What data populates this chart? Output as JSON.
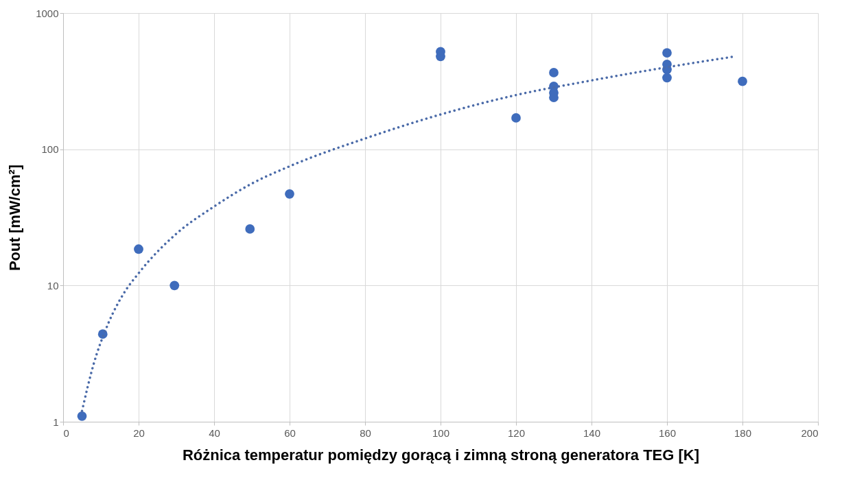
{
  "chart_data": {
    "type": "scatter",
    "xlabel": "Różnica temperatur pomiędzy gorącą i zimną stroną generatora TEG [K]",
    "ylabel": "Pout [mW/cm²]",
    "xlim": [
      0,
      200
    ],
    "xticks": [
      0,
      20,
      40,
      60,
      80,
      100,
      120,
      140,
      160,
      180,
      200
    ],
    "ylim": [
      1,
      1000
    ],
    "yticks": [
      1,
      10,
      100,
      1000
    ],
    "log": "y",
    "grid": true,
    "marker": "circle",
    "series": [
      {
        "color": "#3f6cbc",
        "x": [
          5,
          10.5,
          20,
          29.5,
          49.5,
          60,
          100,
          100,
          120,
          130,
          130,
          130,
          130,
          160,
          160,
          160,
          160,
          180
        ],
        "values": [
          1.1,
          4.4,
          18.5,
          10,
          26,
          47,
          520,
          480,
          170,
          365,
          290,
          260,
          240,
          510,
          420,
          385,
          335,
          315
        ]
      },
      {
        "type": "line",
        "color": "#4a6aa8",
        "line_style": "dotted",
        "marker": "none",
        "x": [
          5,
          8,
          12,
          16,
          20,
          30,
          40,
          50,
          60,
          80,
          100,
          120,
          140,
          160,
          178
        ],
        "values": [
          1.2,
          2.6,
          5.3,
          8.7,
          12.3,
          24,
          38,
          56,
          75,
          120,
          180,
          250,
          320,
          400,
          480
        ]
      }
    ]
  }
}
